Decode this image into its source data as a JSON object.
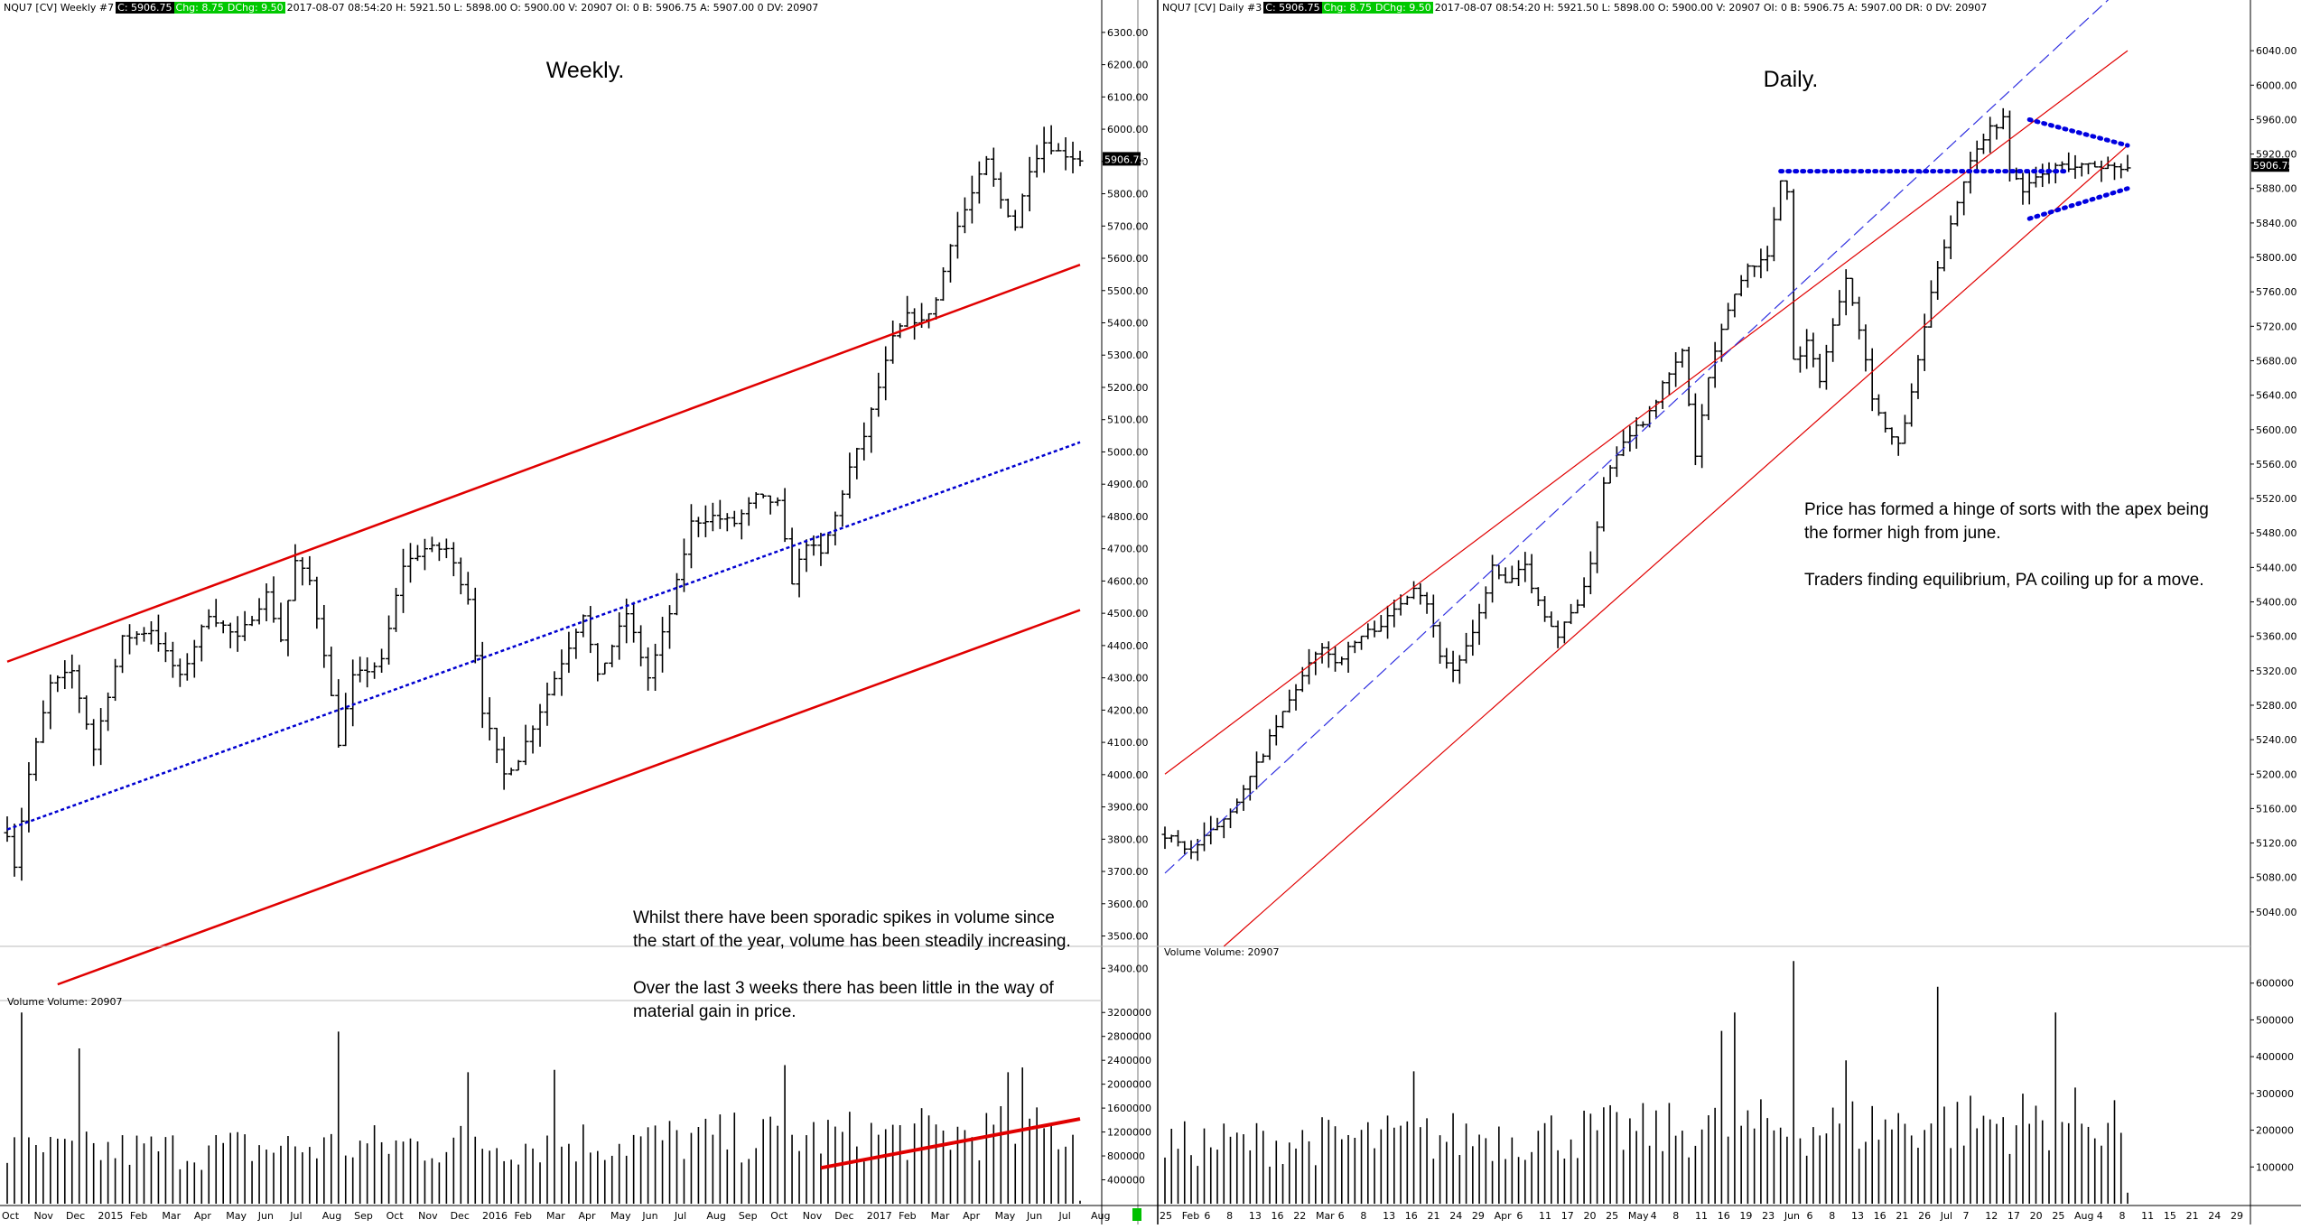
{
  "weekly": {
    "header": {
      "symbol": "NQU7 [CV]  Weekly  #7",
      "close": "C: 5906.75",
      "chg": "Chg: 8.75",
      "dchg": "DChg: 9.50",
      "info": "2017-08-07 08:54:20  H: 5921.50  L: 5898.00  O: 5900.00  V: 20907  OI: 0  B: 5906.75  A: 5907.00  0  DV: 20907"
    },
    "title": "Weekly.",
    "last_price_label": "5906.75",
    "price_ticks": [
      "3400.00",
      "3500.00",
      "3600.00",
      "3700.00",
      "3800.00",
      "3900.00",
      "4000.00",
      "4100.00",
      "4200.00",
      "4300.00",
      "4400.00",
      "4500.00",
      "4600.00",
      "4700.00",
      "4800.00",
      "4900.00",
      "5000.00",
      "5100.00",
      "5200.00",
      "5300.00",
      "5400.00",
      "5500.00",
      "5600.00",
      "5700.00",
      "5800.00",
      "5900.00",
      "6000.00",
      "6100.00",
      "6200.00",
      "6300.00"
    ],
    "volume_label": "Volume  Volume: 20907",
    "volume_ticks": [
      "400000",
      "800000",
      "1200000",
      "1600000",
      "2000000",
      "2400000",
      "2800000",
      "3200000"
    ],
    "date_labels": [
      "Oct",
      "Nov",
      "Dec",
      "2015",
      "Feb",
      "Mar",
      "Apr",
      "May",
      "Jun",
      "Jul",
      "Aug",
      "Sep",
      "Oct",
      "Nov",
      "Dec",
      "2016",
      "Feb",
      "Mar",
      "Apr",
      "May",
      "Jun",
      "Jul",
      "Aug",
      "Sep",
      "Oct",
      "Nov",
      "Dec",
      "2017",
      "Feb",
      "Mar",
      "Apr",
      "May",
      "Jun",
      "Jul",
      "Aug"
    ],
    "note": {
      "p1_l1": "Whilst there have been sporadic spikes in volume since",
      "p1_l2": "the start of the year, volume has been steadily increasing.",
      "p2_l1": "Over the last 3 weeks there has been little in the way of",
      "p2_l2": "material gain in price."
    }
  },
  "daily": {
    "header": {
      "symbol": "NQU7 [CV]  Daily  #3",
      "close": "C: 5906.75",
      "chg": "Chg: 8.75",
      "dchg": "DChg: 9.50",
      "info": "2017-08-07 08:54:20  H: 5921.50  L: 5898.00  O: 5900.00  V: 20907  OI: 0  B: 5906.75  A: 5907.00  DR: 0  DV: 20907"
    },
    "title": "Daily.",
    "last_price_label": "5906.75",
    "price_ticks": [
      "5040.00",
      "5080.00",
      "5120.00",
      "5160.00",
      "5200.00",
      "5240.00",
      "5280.00",
      "5320.00",
      "5360.00",
      "5400.00",
      "5440.00",
      "5480.00",
      "5520.00",
      "5560.00",
      "5600.00",
      "5640.00",
      "5680.00",
      "5720.00",
      "5760.00",
      "5800.00",
      "5840.00",
      "5880.00",
      "5920.00",
      "5960.00",
      "6000.00",
      "6040.00"
    ],
    "volume_label": "Volume  Volume: 20907",
    "volume_ticks": [
      "100000",
      "200000",
      "300000",
      "400000",
      "500000",
      "600000"
    ],
    "date_labels": [
      "25",
      "Feb",
      "6",
      "8",
      "13",
      "16",
      "22",
      "Mar",
      "6",
      "8",
      "13",
      "16",
      "21",
      "24",
      "29",
      "Apr",
      "6",
      "11",
      "17",
      "20",
      "25",
      "May",
      "4",
      "8",
      "11",
      "16",
      "19",
      "23",
      "Jun",
      "6",
      "8",
      "13",
      "16",
      "21",
      "26",
      "Jul",
      "7",
      "12",
      "17",
      "20",
      "25",
      "Aug",
      "4",
      "8",
      "11",
      "15",
      "21",
      "24",
      "29"
    ],
    "note": {
      "p1_l1": "Price has formed a hinge of sorts with the apex being",
      "p1_l2": "the former high from june.",
      "p2_l1": "Traders finding equilibrium, PA coiling up for a move."
    }
  },
  "chart_data": [
    {
      "type": "bar",
      "title": "Weekly.",
      "symbol": "NQU7",
      "ylim": [
        3300,
        6350
      ],
      "last": 5906.75,
      "x_start": "2014-10-06",
      "weeks": 150,
      "keypoints": [
        [
          0,
          3820
        ],
        [
          1,
          3720
        ],
        [
          3,
          4000
        ],
        [
          6,
          4280
        ],
        [
          9,
          4320
        ],
        [
          12,
          4080
        ],
        [
          16,
          4420
        ],
        [
          20,
          4450
        ],
        [
          24,
          4300
        ],
        [
          28,
          4500
        ],
        [
          32,
          4420
        ],
        [
          36,
          4560
        ],
        [
          38,
          4420
        ],
        [
          40,
          4660
        ],
        [
          42,
          4600
        ],
        [
          44,
          4380
        ],
        [
          46,
          4100
        ],
        [
          48,
          4300
        ],
        [
          52,
          4350
        ],
        [
          55,
          4650
        ],
        [
          58,
          4700
        ],
        [
          61,
          4700
        ],
        [
          64,
          4550
        ],
        [
          66,
          4200
        ],
        [
          69,
          4000
        ],
        [
          71,
          4050
        ],
        [
          74,
          4200
        ],
        [
          77,
          4350
        ],
        [
          80,
          4500
        ],
        [
          82,
          4300
        ],
        [
          86,
          4500
        ],
        [
          89,
          4300
        ],
        [
          92,
          4500
        ],
        [
          95,
          4780
        ],
        [
          98,
          4800
        ],
        [
          101,
          4780
        ],
        [
          104,
          4860
        ],
        [
          107,
          4840
        ],
        [
          109,
          4600
        ],
        [
          111,
          4720
        ],
        [
          113,
          4680
        ],
        [
          115,
          4800
        ],
        [
          117,
          4950
        ],
        [
          119,
          5050
        ],
        [
          121,
          5200
        ],
        [
          123,
          5350
        ],
        [
          125,
          5420
        ],
        [
          127,
          5400
        ],
        [
          129,
          5470
        ],
        [
          131,
          5650
        ],
        [
          134,
          5800
        ],
        [
          136,
          5900
        ],
        [
          138,
          5780
        ],
        [
          140,
          5700
        ],
        [
          142,
          5880
        ],
        [
          144,
          5960
        ],
        [
          146,
          5930
        ],
        [
          149,
          5906
        ]
      ],
      "volume_ylim": [
        0,
        3400000
      ],
      "volume_spikes": {
        "2": 3200000,
        "10": 2600000,
        "46": 2880000,
        "64": 2200000,
        "76": 2240000,
        "108": 2320000,
        "139": 2200000,
        "141": 2280000
      },
      "channel_upper": [
        [
          0,
          4350
        ],
        [
          149,
          5580
        ]
      ],
      "channel_mid": [
        [
          0,
          3830
        ],
        [
          149,
          5030
        ]
      ],
      "channel_lower": [
        [
          7,
          3350
        ],
        [
          149,
          4510
        ]
      ],
      "volume_trend": [
        [
          113,
          600000
        ],
        [
          149,
          1420000
        ]
      ]
    },
    {
      "type": "bar",
      "title": "Daily.",
      "symbol": "NQU7",
      "ylim": [
        5000,
        6080
      ],
      "last": 5906.75,
      "bars": 148,
      "keypoints": [
        [
          0,
          5130
        ],
        [
          4,
          5110
        ],
        [
          8,
          5140
        ],
        [
          12,
          5180
        ],
        [
          16,
          5240
        ],
        [
          20,
          5300
        ],
        [
          24,
          5350
        ],
        [
          26,
          5330
        ],
        [
          30,
          5360
        ],
        [
          34,
          5380
        ],
        [
          38,
          5420
        ],
        [
          40,
          5400
        ],
        [
          42,
          5340
        ],
        [
          44,
          5320
        ],
        [
          47,
          5360
        ],
        [
          50,
          5440
        ],
        [
          52,
          5420
        ],
        [
          55,
          5440
        ],
        [
          57,
          5400
        ],
        [
          60,
          5360
        ],
        [
          63,
          5400
        ],
        [
          65,
          5440
        ],
        [
          67,
          5540
        ],
        [
          70,
          5590
        ],
        [
          73,
          5610
        ],
        [
          76,
          5650
        ],
        [
          79,
          5690
        ],
        [
          81,
          5570
        ],
        [
          83,
          5660
        ],
        [
          86,
          5740
        ],
        [
          89,
          5790
        ],
        [
          92,
          5800
        ],
        [
          94,
          5890
        ],
        [
          95,
          5880
        ],
        [
          96,
          5680
        ],
        [
          98,
          5700
        ],
        [
          100,
          5660
        ],
        [
          102,
          5720
        ],
        [
          104,
          5780
        ],
        [
          106,
          5720
        ],
        [
          108,
          5640
        ],
        [
          110,
          5600
        ],
        [
          112,
          5580
        ],
        [
          114,
          5640
        ],
        [
          116,
          5720
        ],
        [
          118,
          5790
        ],
        [
          120,
          5840
        ],
        [
          122,
          5890
        ],
        [
          124,
          5930
        ],
        [
          126,
          5950
        ],
        [
          128,
          5960
        ],
        [
          129,
          5900
        ],
        [
          131,
          5880
        ],
        [
          133,
          5890
        ],
        [
          135,
          5900
        ],
        [
          136,
          5906
        ]
      ],
      "volume_ylim": [
        0,
        700000
      ],
      "volume_spikes": {
        "38": 360000,
        "85": 470000,
        "87": 520000,
        "96": 660000,
        "104": 390000,
        "118": 590000,
        "136": 520000
      },
      "channel_upper": [
        [
          0,
          5200
        ],
        [
          147,
          6040
        ]
      ],
      "channel_mid": [
        [
          0,
          5085
        ],
        [
          147,
          6120
        ]
      ],
      "channel_lower": [
        [
          9,
          5000
        ],
        [
          147,
          5930
        ]
      ],
      "june_high_line": [
        [
          94,
          5900
        ],
        [
          138,
          5900
        ]
      ],
      "triangle_upper": [
        [
          132,
          5960
        ],
        [
          147,
          5930
        ]
      ],
      "triangle_lower": [
        [
          132,
          5845
        ],
        [
          147,
          5880
        ]
      ]
    }
  ]
}
